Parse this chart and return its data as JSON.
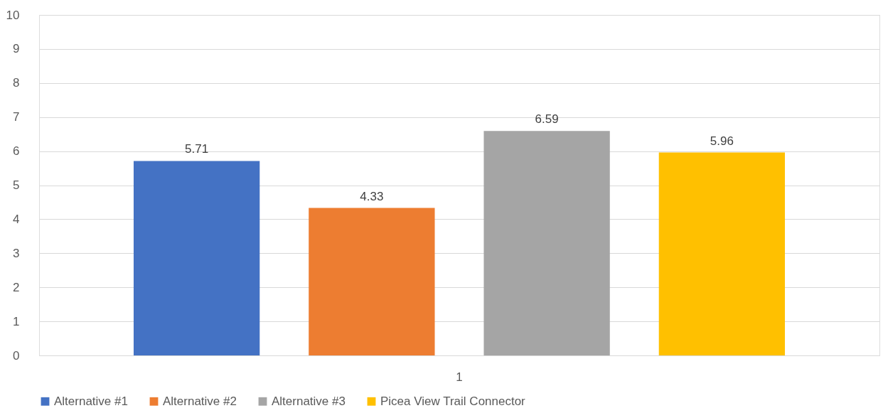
{
  "chart_data": {
    "type": "bar",
    "categories": [
      "1"
    ],
    "series": [
      {
        "name": "Alternative #1",
        "color": "#4472c4",
        "values": [
          5.71
        ]
      },
      {
        "name": "Alternative #2",
        "color": "#ed7d31",
        "values": [
          4.33
        ]
      },
      {
        "name": "Alternative #3",
        "color": "#a5a5a5",
        "values": [
          6.59
        ]
      },
      {
        "name": "Picea View Trail Connector",
        "color": "#ffc000",
        "values": [
          5.96
        ]
      }
    ],
    "ylim": [
      0,
      10
    ],
    "yticks": [
      0,
      1,
      2,
      3,
      4,
      5,
      6,
      7,
      8,
      9,
      10
    ],
    "grid": "y",
    "legend": "bottom",
    "data_labels": true
  }
}
